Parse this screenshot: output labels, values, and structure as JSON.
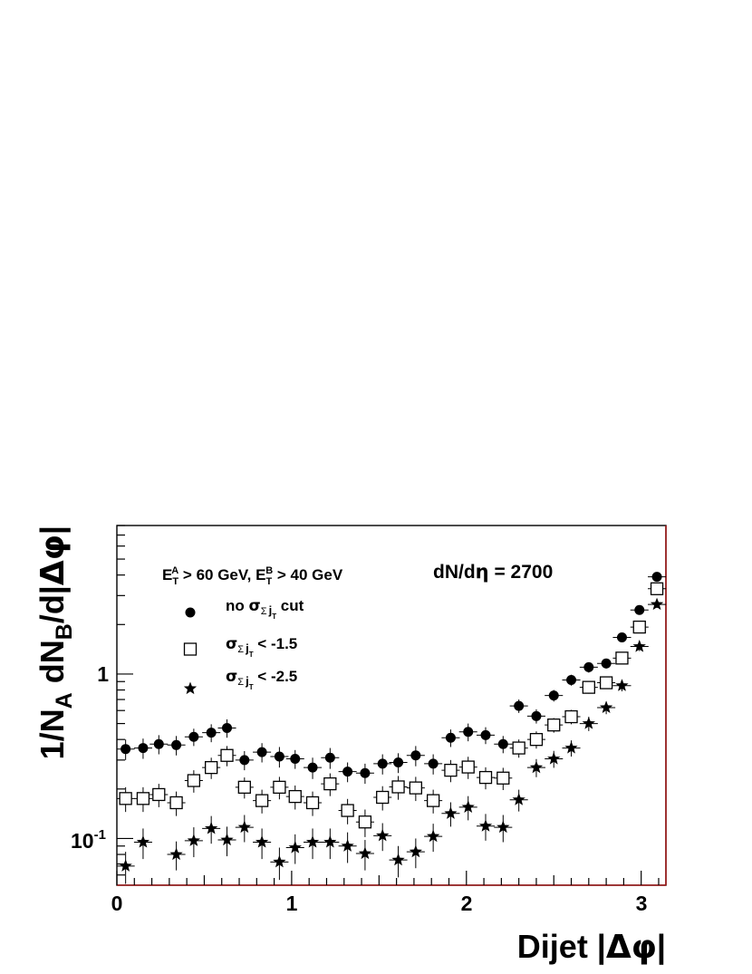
{
  "chart_data": {
    "type": "scatter",
    "x_scale": "linear",
    "y_scale": "log",
    "xlim": [
      0,
      3.1416
    ],
    "ylim": [
      0.052,
      8.0
    ],
    "x_ticks": [
      {
        "value": 0,
        "label": "0"
      },
      {
        "value": 1,
        "label": "1"
      },
      {
        "value": 2,
        "label": "2"
      },
      {
        "value": 3,
        "label": "3"
      }
    ],
    "y_ticks": [
      {
        "value": 0.1,
        "base": "10",
        "exponent": "-1"
      },
      {
        "value": 1,
        "label": "1"
      }
    ],
    "xlabel": {
      "text": "Dijet |",
      "symbol": "Δφ",
      "suffix": "|"
    },
    "ylabel": {
      "part1": "1/N",
      "sub1": "A",
      "part2": " dN",
      "sub2": "B",
      "part3": "/d|",
      "symbol": "Δφ",
      "part4": "|"
    },
    "annotations": {
      "cuts": {
        "e1": "E",
        "s1": "T",
        "p1": "A",
        "t1": " > 60 GeV, E",
        "s2": "T",
        "p2": "B",
        "t2": " > 40 GeV"
      },
      "multiplicity": {
        "pre": "dN/d",
        "sym": "η",
        "post": " = 2700"
      }
    },
    "legend": {
      "position": "upper-left",
      "entries": [
        {
          "pre": "no ",
          "sigma": "σ",
          "sub": "Σ",
          "j": "j",
          "jsub": "T",
          "post": " cut"
        },
        {
          "pre": "",
          "sigma": "σ",
          "sub": "Σ",
          "j": "j",
          "jsub": "T",
          "post": " < -1.5"
        },
        {
          "pre": "",
          "sigma": "σ",
          "sub": "Σ",
          "j": "j",
          "jsub": "T",
          "post": " < -2.5"
        }
      ]
    },
    "x_half_width": 0.052,
    "series": [
      {
        "marker": "filled-circle",
        "points": [
          [
            0.05,
            0.35,
            0.05
          ],
          [
            0.15,
            0.355,
            0.05
          ],
          [
            0.24,
            0.375,
            0.05
          ],
          [
            0.34,
            0.37,
            0.05
          ],
          [
            0.44,
            0.415,
            0.05
          ],
          [
            0.54,
            0.44,
            0.055
          ],
          [
            0.63,
            0.47,
            0.06
          ],
          [
            0.73,
            0.3,
            0.04
          ],
          [
            0.83,
            0.335,
            0.045
          ],
          [
            0.93,
            0.315,
            0.045
          ],
          [
            1.02,
            0.305,
            0.04
          ],
          [
            1.12,
            0.27,
            0.04
          ],
          [
            1.22,
            0.31,
            0.045
          ],
          [
            1.32,
            0.255,
            0.035
          ],
          [
            1.42,
            0.25,
            0.035
          ],
          [
            1.52,
            0.285,
            0.04
          ],
          [
            1.61,
            0.29,
            0.04
          ],
          [
            1.71,
            0.32,
            0.045
          ],
          [
            1.81,
            0.285,
            0.04
          ],
          [
            1.91,
            0.41,
            0.05
          ],
          [
            2.01,
            0.445,
            0.055
          ],
          [
            2.11,
            0.425,
            0.05
          ],
          [
            2.21,
            0.375,
            0.045
          ],
          [
            2.3,
            0.64,
            0.06
          ],
          [
            2.4,
            0.555,
            0.055
          ],
          [
            2.5,
            0.74,
            0.06
          ],
          [
            2.6,
            0.92,
            0.07
          ],
          [
            2.7,
            1.1,
            0.08
          ],
          [
            2.8,
            1.16,
            0.08
          ],
          [
            2.89,
            1.67,
            0.1
          ],
          [
            2.99,
            2.45,
            0.12
          ],
          [
            3.09,
            3.9,
            0.16
          ]
        ]
      },
      {
        "marker": "open-square",
        "points": [
          [
            0.05,
            0.175,
            0.03
          ],
          [
            0.15,
            0.175,
            0.03
          ],
          [
            0.24,
            0.185,
            0.03
          ],
          [
            0.34,
            0.165,
            0.028
          ],
          [
            0.44,
            0.225,
            0.035
          ],
          [
            0.54,
            0.27,
            0.04
          ],
          [
            0.63,
            0.32,
            0.045
          ],
          [
            0.73,
            0.205,
            0.03
          ],
          [
            0.83,
            0.17,
            0.028
          ],
          [
            0.93,
            0.205,
            0.032
          ],
          [
            1.02,
            0.18,
            0.03
          ],
          [
            1.12,
            0.165,
            0.028
          ],
          [
            1.22,
            0.215,
            0.034
          ],
          [
            1.32,
            0.148,
            0.026
          ],
          [
            1.42,
            0.126,
            0.024
          ],
          [
            1.52,
            0.178,
            0.03
          ],
          [
            1.61,
            0.206,
            0.034
          ],
          [
            1.71,
            0.203,
            0.034
          ],
          [
            1.81,
            0.17,
            0.028
          ],
          [
            1.91,
            0.26,
            0.04
          ],
          [
            2.01,
            0.272,
            0.042
          ],
          [
            2.11,
            0.235,
            0.036
          ],
          [
            2.21,
            0.233,
            0.036
          ],
          [
            2.3,
            0.355,
            0.045
          ],
          [
            2.4,
            0.4,
            0.048
          ],
          [
            2.5,
            0.49,
            0.05
          ],
          [
            2.6,
            0.55,
            0.055
          ],
          [
            2.7,
            0.83,
            0.07
          ],
          [
            2.8,
            0.885,
            0.07
          ],
          [
            2.89,
            1.25,
            0.09
          ],
          [
            2.99,
            1.93,
            0.11
          ],
          [
            3.09,
            3.3,
            0.15
          ]
        ]
      },
      {
        "marker": "filled-star",
        "points": [
          [
            0.05,
            0.068,
            0.015
          ],
          [
            0.15,
            0.095,
            0.02
          ],
          [
            0.34,
            0.08,
            0.016
          ],
          [
            0.44,
            0.097,
            0.02
          ],
          [
            0.54,
            0.115,
            0.022
          ],
          [
            0.63,
            0.098,
            0.02
          ],
          [
            0.73,
            0.117,
            0.022
          ],
          [
            0.83,
            0.095,
            0.02
          ],
          [
            0.93,
            0.072,
            0.016
          ],
          [
            1.02,
            0.088,
            0.018
          ],
          [
            1.12,
            0.095,
            0.02
          ],
          [
            1.22,
            0.095,
            0.02
          ],
          [
            1.32,
            0.09,
            0.019
          ],
          [
            1.42,
            0.081,
            0.017
          ],
          [
            1.52,
            0.104,
            0.02
          ],
          [
            1.61,
            0.074,
            0.016
          ],
          [
            1.71,
            0.083,
            0.017
          ],
          [
            1.81,
            0.103,
            0.02
          ],
          [
            1.91,
            0.142,
            0.024
          ],
          [
            2.01,
            0.155,
            0.026
          ],
          [
            2.11,
            0.119,
            0.022
          ],
          [
            2.21,
            0.117,
            0.022
          ],
          [
            2.3,
            0.172,
            0.026
          ],
          [
            2.4,
            0.27,
            0.034
          ],
          [
            2.5,
            0.305,
            0.036
          ],
          [
            2.6,
            0.355,
            0.04
          ],
          [
            2.7,
            0.5,
            0.05
          ],
          [
            2.8,
            0.625,
            0.055
          ],
          [
            2.89,
            0.85,
            0.065
          ],
          [
            2.99,
            1.47,
            0.09
          ],
          [
            3.09,
            2.65,
            0.13
          ]
        ]
      }
    ]
  }
}
